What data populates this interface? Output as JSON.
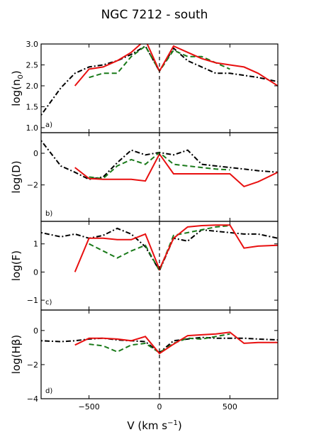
{
  "chart_data": {
    "type": "line",
    "title": "NGC 7212 - south",
    "xlabel": "V (km s",
    "xlabel_exp": "−1",
    "xlabel_close": ")",
    "xlim": [
      -840,
      840
    ],
    "xticks": [
      -500,
      0,
      500
    ],
    "xtick_labels": [
      "−500",
      "0",
      "500"
    ],
    "vertical_reference_x": 0,
    "series_styles": [
      {
        "color": "#000000",
        "dash": "2,3,7,3"
      },
      {
        "color": "#1a7a1a",
        "dash": "7,4"
      },
      {
        "color": "#e81010",
        "dash": ""
      }
    ],
    "panels": [
      {
        "tag": "a)",
        "ylabel_main": "log(n",
        "ylabel_sub": "0",
        "ylabel_close": ")",
        "ylim": [
          0.88,
          3.0
        ],
        "yticks": [
          1.0,
          1.5,
          2.0,
          2.5,
          3.0
        ],
        "ytick_labels": [
          "1.0",
          "1.5",
          "2.0",
          "2.5",
          "3.0"
        ],
        "series": [
          {
            "x": [
              -840,
              -700,
              -600,
              -500,
              -400,
              -300,
              -200,
              -100,
              0,
              100,
              200,
              300,
              400,
              500,
              600,
              700,
              840
            ],
            "values": [
              1.3,
              1.95,
              2.3,
              2.45,
              2.5,
              2.6,
              2.75,
              2.95,
              2.35,
              2.9,
              2.6,
              2.45,
              2.3,
              2.3,
              2.25,
              2.2,
              2.1
            ]
          },
          {
            "x": [
              -500,
              -400,
              -300,
              -200,
              -100,
              0,
              100,
              200,
              300,
              400,
              500
            ],
            "values": [
              2.2,
              2.3,
              2.3,
              2.7,
              2.95,
              2.35,
              2.85,
              2.7,
              2.7,
              2.55,
              2.4
            ]
          },
          {
            "x": [
              -600,
              -500,
              -400,
              -300,
              -200,
              -100,
              0,
              100,
              200,
              300,
              400,
              500,
              600,
              700,
              840
            ],
            "values": [
              2.0,
              2.4,
              2.45,
              2.6,
              2.8,
              3.1,
              2.35,
              2.95,
              2.8,
              2.65,
              2.55,
              2.5,
              2.45,
              2.3,
              2.0
            ]
          }
        ]
      },
      {
        "tag": "b)",
        "ylabel_main": "log(D)",
        "ylabel_sub": "",
        "ylabel_close": "",
        "ylim": [
          -4.3,
          1.3
        ],
        "yticks": [
          -2,
          0
        ],
        "ytick_labels": [
          "−2",
          "0"
        ],
        "series": [
          {
            "x": [
              -840,
              -700,
              -600,
              -500,
              -400,
              -300,
              -200,
              -100,
              0,
              100,
              200,
              300,
              400,
              500,
              600,
              700,
              840
            ],
            "values": [
              0.8,
              -0.8,
              -1.2,
              -1.65,
              -1.5,
              -0.6,
              0.2,
              -0.1,
              0.05,
              -0.1,
              0.2,
              -0.7,
              -0.8,
              -0.9,
              -1.0,
              -1.1,
              -1.2
            ]
          },
          {
            "x": [
              -500,
              -400,
              -300,
              -200,
              -100,
              0,
              100,
              200,
              300,
              400,
              500
            ],
            "values": [
              -1.5,
              -1.6,
              -0.8,
              -0.4,
              -0.7,
              0.05,
              -0.7,
              -0.8,
              -0.9,
              -1.0,
              -1.05
            ]
          },
          {
            "x": [
              -600,
              -500,
              -400,
              -300,
              -200,
              -100,
              0,
              100,
              200,
              300,
              400,
              500,
              600,
              700,
              840
            ],
            "values": [
              -0.9,
              -1.6,
              -1.65,
              -1.65,
              -1.65,
              -1.75,
              -0.05,
              -1.3,
              -1.3,
              -1.3,
              -1.3,
              -1.3,
              -2.1,
              -1.8,
              -1.2
            ]
          }
        ]
      },
      {
        "tag": "c)",
        "ylabel_main": "log(F)",
        "ylabel_sub": "",
        "ylabel_close": "",
        "ylim": [
          -1.35,
          1.8
        ],
        "yticks": [
          -1,
          0,
          1
        ],
        "ytick_labels": [
          "−1",
          "0",
          "1"
        ],
        "series": [
          {
            "x": [
              -840,
              -700,
              -600,
              -500,
              -400,
              -300,
              -200,
              -100,
              0,
              100,
              200,
              300,
              400,
              500,
              600,
              700,
              840
            ],
            "values": [
              1.4,
              1.25,
              1.35,
              1.2,
              1.3,
              1.55,
              1.35,
              0.9,
              0.05,
              1.2,
              1.1,
              1.5,
              1.45,
              1.4,
              1.35,
              1.35,
              1.2
            ]
          },
          {
            "x": [
              -500,
              -400,
              -300,
              -200,
              -100,
              0,
              100,
              200,
              300,
              400,
              500
            ],
            "values": [
              1.0,
              0.75,
              0.5,
              0.75,
              0.95,
              0.05,
              1.3,
              1.4,
              1.5,
              1.6,
              1.65
            ]
          },
          {
            "x": [
              -600,
              -500,
              -400,
              -300,
              -200,
              -100,
              0,
              100,
              200,
              300,
              400,
              500,
              600,
              700,
              840
            ],
            "values": [
              0.0,
              1.2,
              1.2,
              1.15,
              1.15,
              1.35,
              0.1,
              1.2,
              1.6,
              1.65,
              1.67,
              1.67,
              0.85,
              0.92,
              0.95
            ]
          }
        ]
      },
      {
        "tag": "d)",
        "ylabel_main": "log(Hβ)",
        "ylabel_sub": "",
        "ylabel_close": "",
        "ylim": [
          -4.0,
          1.2
        ],
        "yticks": [
          -4,
          -2,
          0
        ],
        "ytick_labels": [
          "−4",
          "−2",
          "0"
        ],
        "series": [
          {
            "x": [
              -840,
              -700,
              -600,
              -500,
              -400,
              -300,
              -200,
              -100,
              0,
              100,
              200,
              300,
              400,
              500,
              600,
              700,
              840
            ],
            "values": [
              -0.6,
              -0.65,
              -0.6,
              -0.5,
              -0.45,
              -0.55,
              -0.6,
              -0.65,
              -1.3,
              -0.6,
              -0.5,
              -0.4,
              -0.45,
              -0.45,
              -0.45,
              -0.5,
              -0.55
            ]
          },
          {
            "x": [
              -500,
              -400,
              -300,
              -200,
              -100,
              0,
              100,
              200,
              300,
              400,
              500
            ],
            "values": [
              -0.8,
              -0.9,
              -1.25,
              -0.85,
              -0.75,
              -1.3,
              -0.75,
              -0.45,
              -0.5,
              -0.35,
              -0.2
            ]
          },
          {
            "x": [
              -600,
              -500,
              -400,
              -300,
              -200,
              -100,
              0,
              100,
              200,
              300,
              400,
              500,
              600,
              700,
              840
            ],
            "values": [
              -0.85,
              -0.45,
              -0.45,
              -0.5,
              -0.6,
              -0.35,
              -1.35,
              -0.8,
              -0.3,
              -0.25,
              -0.2,
              -0.1,
              -0.75,
              -0.7,
              -0.7
            ]
          }
        ]
      }
    ]
  }
}
